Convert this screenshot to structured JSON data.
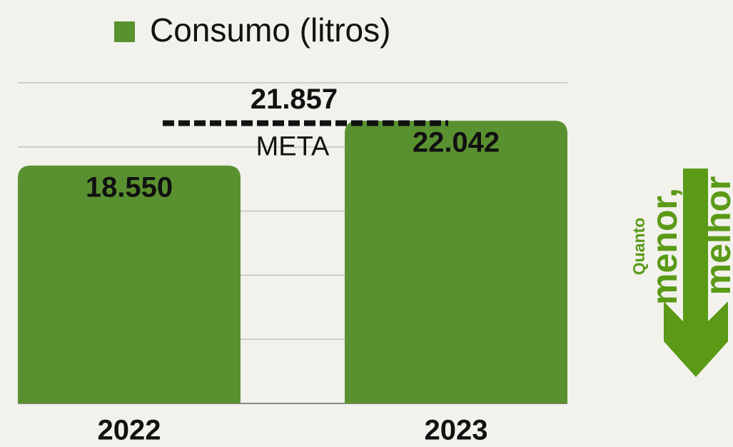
{
  "chart_data": {
    "type": "bar",
    "categories": [
      "2022",
      "2023"
    ],
    "series": [
      {
        "name": "Consumo (litros)",
        "color": "#5a9130",
        "values": [
          18550,
          22042
        ],
        "value_labels": [
          "18.550",
          "22.042"
        ]
      }
    ],
    "ylim": [
      0,
      25000
    ],
    "yticks": [
      0,
      5000,
      10000,
      15000,
      20000,
      25000
    ],
    "grid": true,
    "target": {
      "value": 21857,
      "value_label": "21.857",
      "label": "META"
    },
    "annotations": [
      "Quanto",
      "menor,",
      "melhor"
    ]
  }
}
